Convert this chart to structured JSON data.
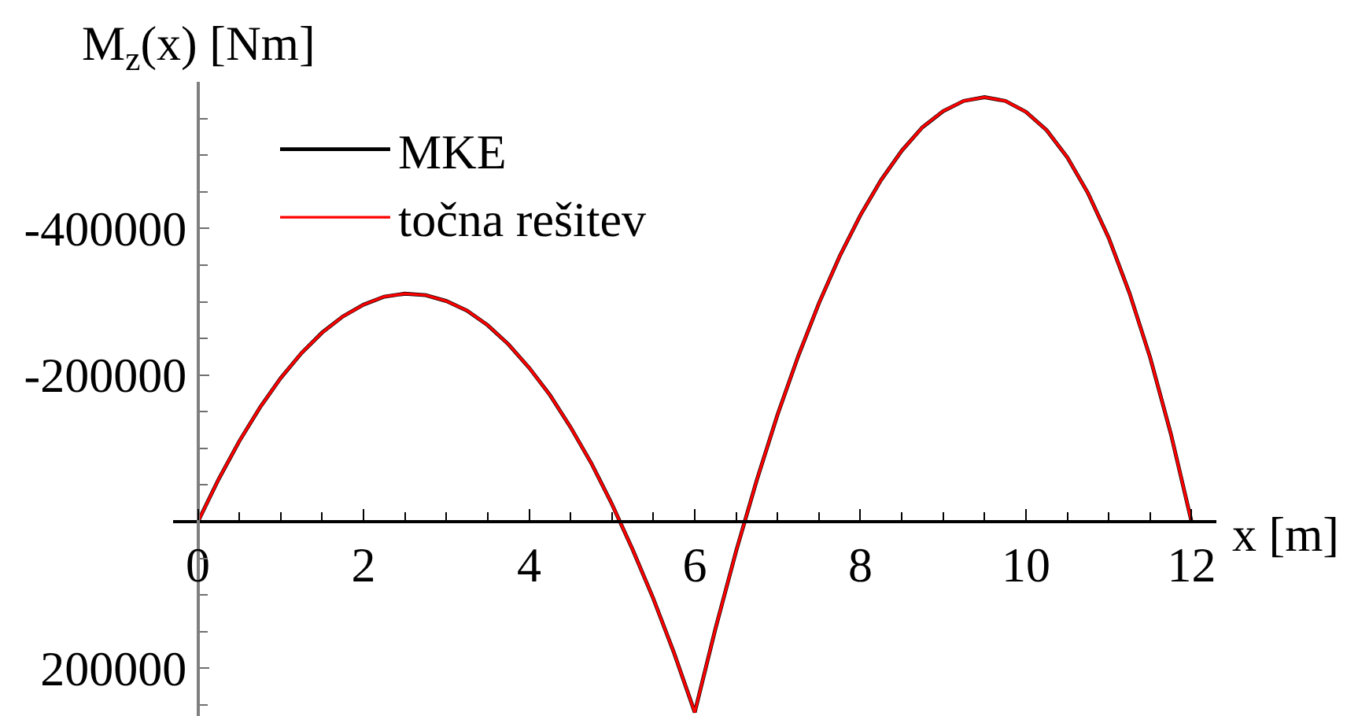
{
  "chart_data": {
    "type": "line",
    "ylabel": "M$_{z}$(x) [Nm]",
    "xlabel": "x [m]",
    "x": [
      0,
      0.25,
      0.5,
      0.75,
      1,
      1.25,
      1.5,
      1.75,
      2,
      2.25,
      2.5,
      2.75,
      3,
      3.25,
      3.5,
      3.75,
      4,
      4.25,
      4.5,
      4.75,
      5,
      5.25,
      5.5,
      5.75,
      6,
      6.25,
      6.5,
      6.75,
      7,
      7.25,
      7.5,
      7.75,
      8,
      8.25,
      8.5,
      8.75,
      9,
      9.25,
      9.5,
      9.75,
      10,
      10.25,
      10.5,
      10.75,
      11,
      11.25,
      11.5,
      11.75,
      12
    ],
    "series": [
      {
        "name": "MKE",
        "color": "#000000",
        "values": [
          0,
          -58000,
          -110000,
          -156000,
          -196000,
          -230000,
          -258000,
          -280000,
          -296000,
          -307000,
          -311000,
          -309000,
          -301000,
          -288000,
          -268000,
          -242000,
          -210000,
          -173000,
          -129000,
          -80000,
          -24000,
          38000,
          105000,
          179000,
          260000,
          146000,
          40000,
          -57000,
          -146000,
          -226000,
          -298000,
          -362000,
          -418000,
          -466000,
          -506000,
          -538000,
          -560000,
          -574000,
          -579000,
          -574000,
          -559000,
          -534000,
          -497000,
          -448000,
          -387000,
          -312000,
          -224000,
          -120000,
          0
        ]
      },
      {
        "name": "točna rešitev",
        "color": "#ff0000",
        "values": [
          0,
          -58000,
          -110000,
          -156000,
          -196000,
          -230000,
          -258000,
          -280000,
          -296000,
          -307000,
          -311000,
          -309000,
          -301000,
          -288000,
          -268000,
          -242000,
          -210000,
          -173000,
          -129000,
          -80000,
          -24000,
          38000,
          105000,
          179000,
          260000,
          146000,
          40000,
          -57000,
          -146000,
          -226000,
          -298000,
          -362000,
          -418000,
          -466000,
          -506000,
          -538000,
          -560000,
          -574000,
          -579000,
          -574000,
          -559000,
          -534000,
          -497000,
          -448000,
          -387000,
          -312000,
          -224000,
          -120000,
          0
        ]
      }
    ],
    "xlim": [
      -0.3,
      12.3
    ],
    "ylim": [
      265000,
      -600000
    ],
    "xticks": [
      0,
      {
        "value": 0.5,
        "label": null
      },
      {
        "value": 1,
        "label": null
      },
      {
        "value": 1.5,
        "label": null
      },
      2,
      {
        "value": 2.5,
        "label": null
      },
      {
        "value": 3,
        "label": null
      },
      {
        "value": 3.5,
        "label": null
      },
      4,
      {
        "value": 4.5,
        "label": null
      },
      {
        "value": 5,
        "label": null
      },
      {
        "value": 5.5,
        "label": null
      },
      6,
      {
        "value": 6.5,
        "label": null
      },
      {
        "value": 7,
        "label": null
      },
      {
        "value": 7.5,
        "label": null
      },
      8,
      {
        "value": 8.5,
        "label": null
      },
      {
        "value": 9,
        "label": null
      },
      {
        "value": 9.5,
        "label": null
      },
      10,
      {
        "value": 10.5,
        "label": null
      },
      {
        "value": 11,
        "label": null
      },
      {
        "value": 11.5,
        "label": null
      },
      12
    ],
    "yticks": [
      {
        "value": -550000,
        "label": null
      },
      {
        "value": -500000,
        "label": null
      },
      {
        "value": -450000,
        "label": null
      },
      -400000,
      {
        "value": -350000,
        "label": null
      },
      {
        "value": -300000,
        "label": null
      },
      {
        "value": -250000,
        "label": null
      },
      -200000,
      {
        "value": -150000,
        "label": null
      },
      {
        "value": -100000,
        "label": null
      },
      {
        "value": -50000,
        "label": null
      },
      {
        "value": 50000,
        "label": null
      },
      {
        "value": 100000,
        "label": null
      },
      {
        "value": 150000,
        "label": null
      },
      200000,
      {
        "value": 250000,
        "label": null
      }
    ],
    "legend": "top left"
  }
}
